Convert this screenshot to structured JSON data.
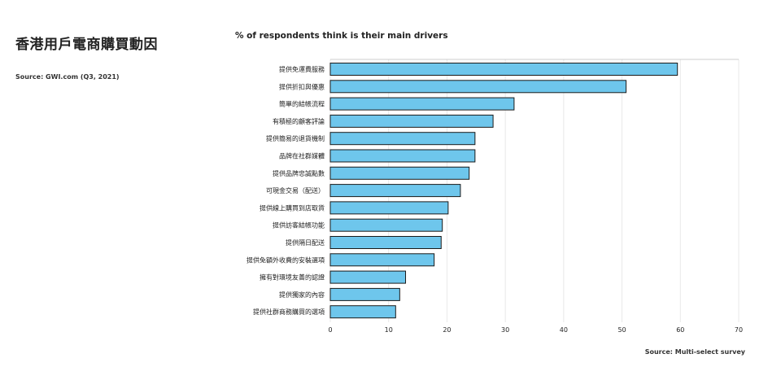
{
  "left_title": "香港用戶電商購買動因",
  "left_source": "Source: GWI.com (Q3, 2021)",
  "footer_source": "Source: Multi-select survey",
  "colors": {
    "bar_fill": "#6ec6ec",
    "bar_stroke": "#1a1a1a",
    "grid": "#e8e8e8"
  },
  "chart_data": {
    "type": "bar",
    "orientation": "horizontal",
    "title": "% of respondents think is their main drivers",
    "xlabel": "",
    "ylabel": "",
    "xlim": [
      0,
      70
    ],
    "xticks": [
      0,
      10,
      20,
      30,
      40,
      50,
      60,
      70
    ],
    "grid": true,
    "categories": [
      "提供免運費服務",
      "提供折扣與優惠",
      "簡單的結帳流程",
      "有積極的顧客評論",
      "提供簡易的退貨機制",
      "品牌在社群媒體",
      "提供品牌忠誠點數",
      "可現金交易（配送）",
      "提供線上購買到店取貨",
      "提供訪客結帳功能",
      "提供隔日配送",
      "提供免額外收費的安裝選項",
      "擁有對環境友善的認證",
      "提供獨家的內容",
      "提供社群商務購買的選項"
    ],
    "values": [
      59.5,
      50.7,
      31.5,
      27.9,
      24.8,
      24.8,
      23.8,
      22.3,
      20.2,
      19.2,
      19.0,
      17.8,
      12.9,
      11.9,
      11.2
    ]
  }
}
